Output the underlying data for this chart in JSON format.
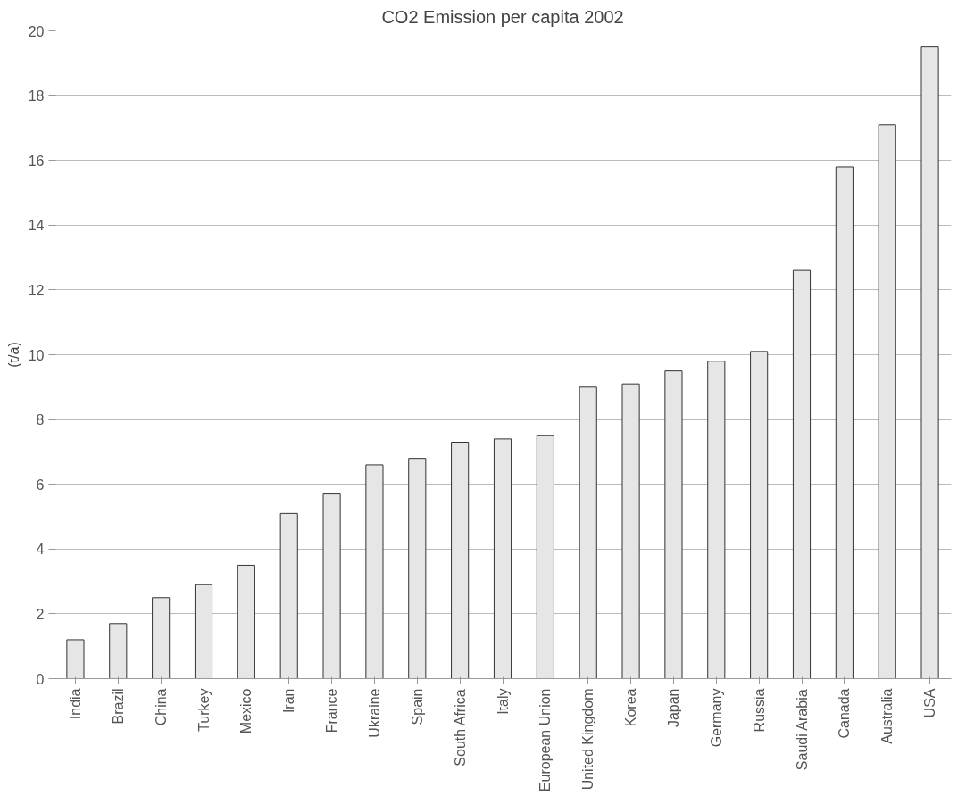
{
  "chart_data": {
    "type": "bar",
    "title": "CO2 Emission per capita 2002",
    "ylabel": "(t/a)",
    "categories": [
      "India",
      "Brazil",
      "China",
      "Turkey",
      "Mexico",
      "Iran",
      "France",
      "Ukraine",
      "Spain",
      "South Africa",
      "Italy",
      "European Union",
      "United Kingdom",
      "Korea",
      "Japan",
      "Germany",
      "Russia",
      "Saudi Arabia",
      "Canada",
      "Australia",
      "USA"
    ],
    "values": [
      1.2,
      1.7,
      2.5,
      2.9,
      3.5,
      5.1,
      5.7,
      6.6,
      6.8,
      7.3,
      7.4,
      7.5,
      9.0,
      9.1,
      9.5,
      9.8,
      10.1,
      12.6,
      15.8,
      17.1,
      19.5
    ],
    "color": "#e6e6e6",
    "ylim": [
      0,
      20
    ],
    "yticks": [
      0,
      2,
      4,
      6,
      8,
      10,
      12,
      14,
      16,
      18,
      20
    ],
    "grid": "y"
  }
}
